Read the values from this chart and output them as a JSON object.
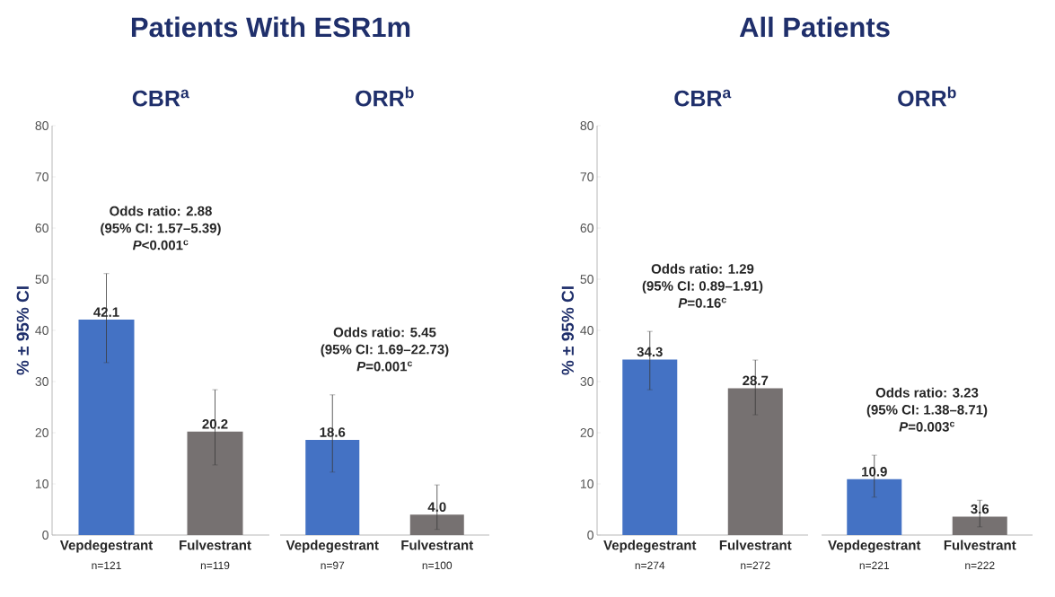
{
  "chart_data": [
    {
      "type": "bar",
      "title": "Patients With ESR1m",
      "subtitle": "CBR$^{a}$",
      "ylabel": "% ± 95% CI",
      "categories": [
        "Vepdegestrant",
        "Fulvestrant"
      ],
      "values": [
        42.1,
        20.2
      ],
      "value_labels": [
        "42.1",
        "20.2"
      ],
      "colors": [
        "#4472c4",
        "#767171"
      ],
      "errors": [
        [
          33.7,
          51.1
        ],
        [
          13.7,
          28.4
        ]
      ],
      "ylim": [
        0,
        80
      ],
      "yticks": [
        0,
        10,
        20,
        30,
        40,
        50,
        60,
        70,
        80
      ],
      "annotations": [
        "Odds ratio: 2.88",
        "(95% CI: 1.57–5.39)",
        "*P*<0.001$^{c}$",
        "n=121",
        "n=119"
      ]
    },
    {
      "type": "bar",
      "subtitle": "ORR$^{b}$",
      "categories": [
        "Vepdegestrant",
        "Fulvestrant"
      ],
      "values": [
        18.6,
        4.0
      ],
      "value_labels": [
        "18.6",
        "4.0"
      ],
      "colors": [
        "#4472c4",
        "#767171"
      ],
      "errors": [
        [
          12.3,
          27.4
        ],
        [
          1.1,
          9.8
        ]
      ],
      "ylim": [
        0,
        80
      ],
      "yticks": [
        0,
        10,
        20,
        30,
        40,
        50,
        60,
        70,
        80
      ],
      "tick_labels": "x",
      "annotations": [
        "Odds ratio: 5.45",
        "(95% CI: 1.69–22.73)",
        "*P*=0.001$^{c}$",
        "n=97",
        "n=100"
      ]
    },
    {
      "type": "bar",
      "title": "All Patients",
      "subtitle": "CBR$^{a}$",
      "ylabel": "% ± 95% CI",
      "categories": [
        "Vepdegestrant",
        "Fulvestrant"
      ],
      "values": [
        34.3,
        28.7
      ],
      "value_labels": [
        "34.3",
        "28.7"
      ],
      "colors": [
        "#4472c4",
        "#767171"
      ],
      "errors": [
        [
          28.4,
          39.8
        ],
        [
          23.5,
          34.2
        ]
      ],
      "ylim": [
        0,
        80
      ],
      "yticks": [
        0,
        10,
        20,
        30,
        40,
        50,
        60,
        70,
        80
      ],
      "annotations": [
        "Odds ratio: 1.29",
        "(95% CI: 0.89–1.91)",
        "*P*=0.16$^{c}$",
        "n=274",
        "n=272"
      ]
    },
    {
      "type": "bar",
      "subtitle": "ORR$^{b}$",
      "categories": [
        "Vepdegestrant",
        "Fulvestrant"
      ],
      "values": [
        10.9,
        3.6
      ],
      "value_labels": [
        "10.9",
        "3.6"
      ],
      "colors": [
        "#4472c4",
        "#767171"
      ],
      "errors": [
        [
          7.4,
          15.6
        ],
        [
          1.6,
          6.8
        ]
      ],
      "ylim": [
        0,
        80
      ],
      "yticks": [
        0,
        10,
        20,
        30,
        40,
        50,
        60,
        70,
        80
      ],
      "tick_labels": "x",
      "annotations": [
        "Odds ratio: 3.23",
        "(95% CI: 1.38–8.71)",
        "*P*=0.003$^{c}$",
        "n=221",
        "n=222"
      ]
    }
  ]
}
